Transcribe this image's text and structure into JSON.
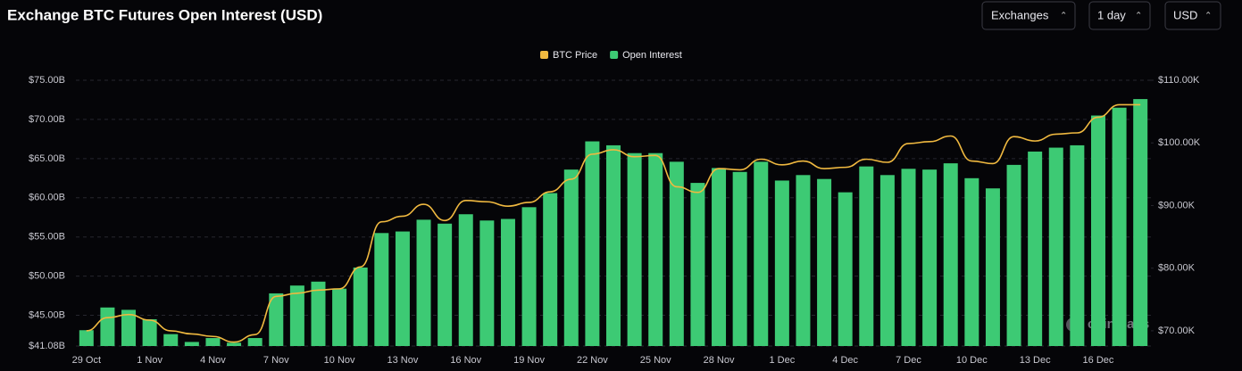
{
  "chart_data": {
    "type": "bar",
    "title": "Exchange BTC Futures Open Interest (USD)",
    "categories": [
      "29 Oct",
      null,
      null,
      "1 Nov",
      null,
      null,
      "4 Nov",
      null,
      null,
      "7 Nov",
      null,
      null,
      "10 Nov",
      null,
      null,
      "13 Nov",
      null,
      null,
      "16 Nov",
      null,
      null,
      "19 Nov",
      null,
      null,
      "22 Nov",
      null,
      null,
      "25 Nov",
      null,
      null,
      "28 Nov",
      null,
      null,
      "1 Dec",
      null,
      null,
      "4 Dec",
      null,
      null,
      "7 Dec",
      null,
      null,
      "10 Dec",
      null,
      null,
      "13 Dec",
      null,
      null,
      "16 Dec",
      null,
      null
    ],
    "series": [
      {
        "name": "BTC Price",
        "color": "#f0b940",
        "type": "line",
        "axis": "y2",
        "values": [
          70.0,
          72.1,
          72.6,
          71.7,
          70.0,
          69.5,
          69.1,
          68.2,
          69.4,
          75.5,
          76.0,
          76.5,
          76.7,
          80.2,
          87.4,
          88.3,
          90.2,
          87.6,
          90.8,
          90.6,
          89.9,
          90.5,
          92.2,
          94.2,
          98.2,
          98.9,
          97.8,
          98.0,
          93.0,
          92.1,
          95.9,
          95.7,
          97.4,
          96.5,
          97.1,
          95.9,
          96.1,
          97.4,
          96.9,
          99.9,
          100.2,
          101.1,
          97.1,
          96.7,
          101.0,
          100.3,
          101.4,
          101.6,
          104.1,
          106.1,
          106.1
        ]
      },
      {
        "name": "Open Interest",
        "color": "#3dca74",
        "type": "bar",
        "values": [
          43.1,
          46.0,
          45.7,
          44.5,
          42.6,
          41.6,
          42.1,
          41.5,
          42.1,
          47.8,
          48.8,
          49.3,
          48.4,
          51.1,
          55.5,
          55.7,
          57.2,
          56.7,
          57.9,
          57.1,
          57.3,
          58.8,
          60.6,
          63.6,
          67.2,
          66.7,
          65.7,
          65.7,
          64.6,
          61.9,
          63.8,
          63.3,
          64.6,
          62.2,
          62.9,
          62.4,
          60.7,
          64.0,
          62.9,
          63.7,
          63.6,
          64.4,
          62.5,
          61.2,
          64.2,
          65.9,
          66.4,
          66.7,
          70.5,
          71.5,
          72.6
        ]
      }
    ],
    "ylim": [
      41.08,
      75
    ],
    "yticks": [
      {
        "value": 41.08,
        "label": "$41.08B"
      },
      {
        "value": 45,
        "label": "$45.00B"
      },
      {
        "value": 50,
        "label": "$50.00B"
      },
      {
        "value": 55,
        "label": "$55.00B"
      },
      {
        "value": 60,
        "label": "$60.00B"
      },
      {
        "value": 65,
        "label": "$65.00B"
      },
      {
        "value": 70,
        "label": "$70.00B"
      },
      {
        "value": 75,
        "label": "$75.00B"
      }
    ],
    "y2lim": [
      67.57,
      110
    ],
    "y2ticks": [
      {
        "value": 70,
        "label": "$70.00K"
      },
      {
        "value": 80,
        "label": "$80.00K"
      },
      {
        "value": 90,
        "label": "$90.00K"
      },
      {
        "value": 100,
        "label": "$100.00K"
      },
      {
        "value": 110,
        "label": "$110.00K"
      }
    ],
    "grid": true,
    "legend": "top"
  },
  "controls": [
    "Exchanges",
    "1 day",
    "USD"
  ],
  "watermark": "coinglass"
}
